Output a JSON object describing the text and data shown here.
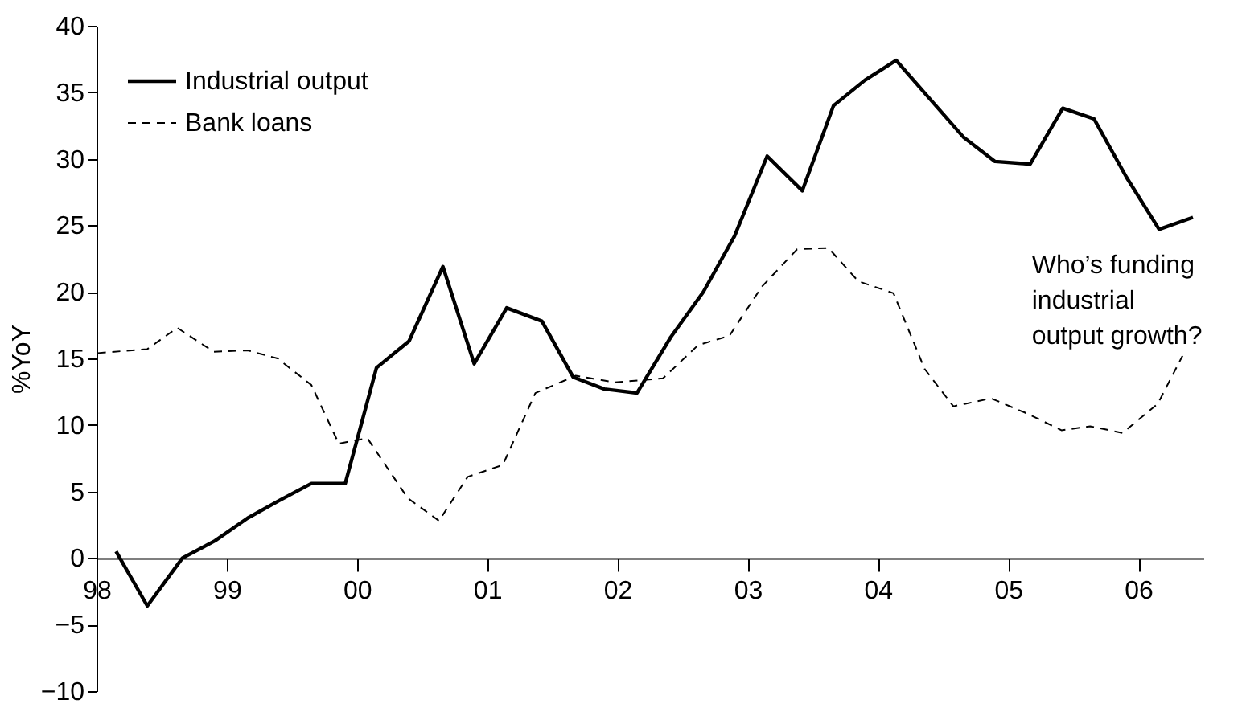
{
  "chart_data": {
    "type": "line",
    "ylabel": "%YoY",
    "xlim": [
      1998,
      2006.5
    ],
    "xticks": [
      {
        "value": 1998,
        "label": "98"
      },
      {
        "value": 1999,
        "label": "99"
      },
      {
        "value": 2000,
        "label": "00"
      },
      {
        "value": 2001,
        "label": "01"
      },
      {
        "value": 2002,
        "label": "02"
      },
      {
        "value": 2003,
        "label": "03"
      },
      {
        "value": 2004,
        "label": "04"
      },
      {
        "value": 2005,
        "label": "05"
      },
      {
        "value": 2006,
        "label": "06"
      }
    ],
    "ylim": [
      -10,
      40
    ],
    "yticks": [
      {
        "value": -10,
        "label": "−10"
      },
      {
        "value": -5,
        "label": "−5"
      },
      0,
      5,
      10,
      15,
      20,
      25,
      30,
      35,
      40
    ],
    "grid": false,
    "legend": "top left",
    "series": [
      {
        "name": "Industrial output",
        "color": "#000000",
        "line_style": "solid",
        "x": [
          1998.15,
          1998.39,
          1998.66,
          1998.91,
          1999.16,
          1999.4,
          1999.65,
          1999.91,
          2000.15,
          2000.4,
          2000.66,
          2000.9,
          2001.15,
          2001.42,
          2001.66,
          2001.9,
          2002.15,
          2002.41,
          2002.66,
          2002.9,
          2003.15,
          2003.42,
          2003.66,
          2003.9,
          2004.14,
          2004.4,
          2004.66,
          2004.9,
          2005.17,
          2005.42,
          2005.66,
          2005.91,
          2006.16,
          2006.42
        ],
        "values": [
          0.5,
          -3.6,
          0,
          1.3,
          3.0,
          4.3,
          5.6,
          5.6,
          14.3,
          16.3,
          21.9,
          14.6,
          18.8,
          17.8,
          13.6,
          12.7,
          12.4,
          16.6,
          20.0,
          24.2,
          30.2,
          27.6,
          34.0,
          35.9,
          37.4,
          34.5,
          31.6,
          29.8,
          29.6,
          33.8,
          33.0,
          28.6,
          24.7,
          25.6
        ]
      },
      {
        "name": "Bank loans",
        "color": "#000000",
        "line_style": "dashed",
        "x": [
          1998.01,
          1998.39,
          1998.62,
          1998.9,
          1999.16,
          1999.39,
          1999.65,
          1999.86,
          2000.08,
          2000.39,
          2000.63,
          2000.85,
          2001.12,
          2001.37,
          2001.68,
          2001.98,
          2002.35,
          2002.62,
          2002.86,
          2003.11,
          2003.38,
          2003.62,
          2003.85,
          2004.12,
          2004.36,
          2004.58,
          2004.87,
          2005.16,
          2005.41,
          2005.63,
          2005.88,
          2006.15,
          2006.34
        ],
        "values": [
          15.4,
          15.7,
          17.3,
          15.5,
          15.6,
          15.0,
          13.0,
          8.6,
          9.0,
          4.5,
          2.8,
          6.1,
          7.0,
          12.4,
          13.7,
          13.2,
          13.5,
          16.0,
          16.7,
          20.4,
          23.2,
          23.3,
          20.8,
          19.9,
          14.2,
          11.4,
          12.0,
          10.8,
          9.6,
          9.9,
          9.4,
          11.6,
          15.2
        ]
      }
    ],
    "annotations": [
      "Who’s funding industrial output growth?"
    ]
  }
}
